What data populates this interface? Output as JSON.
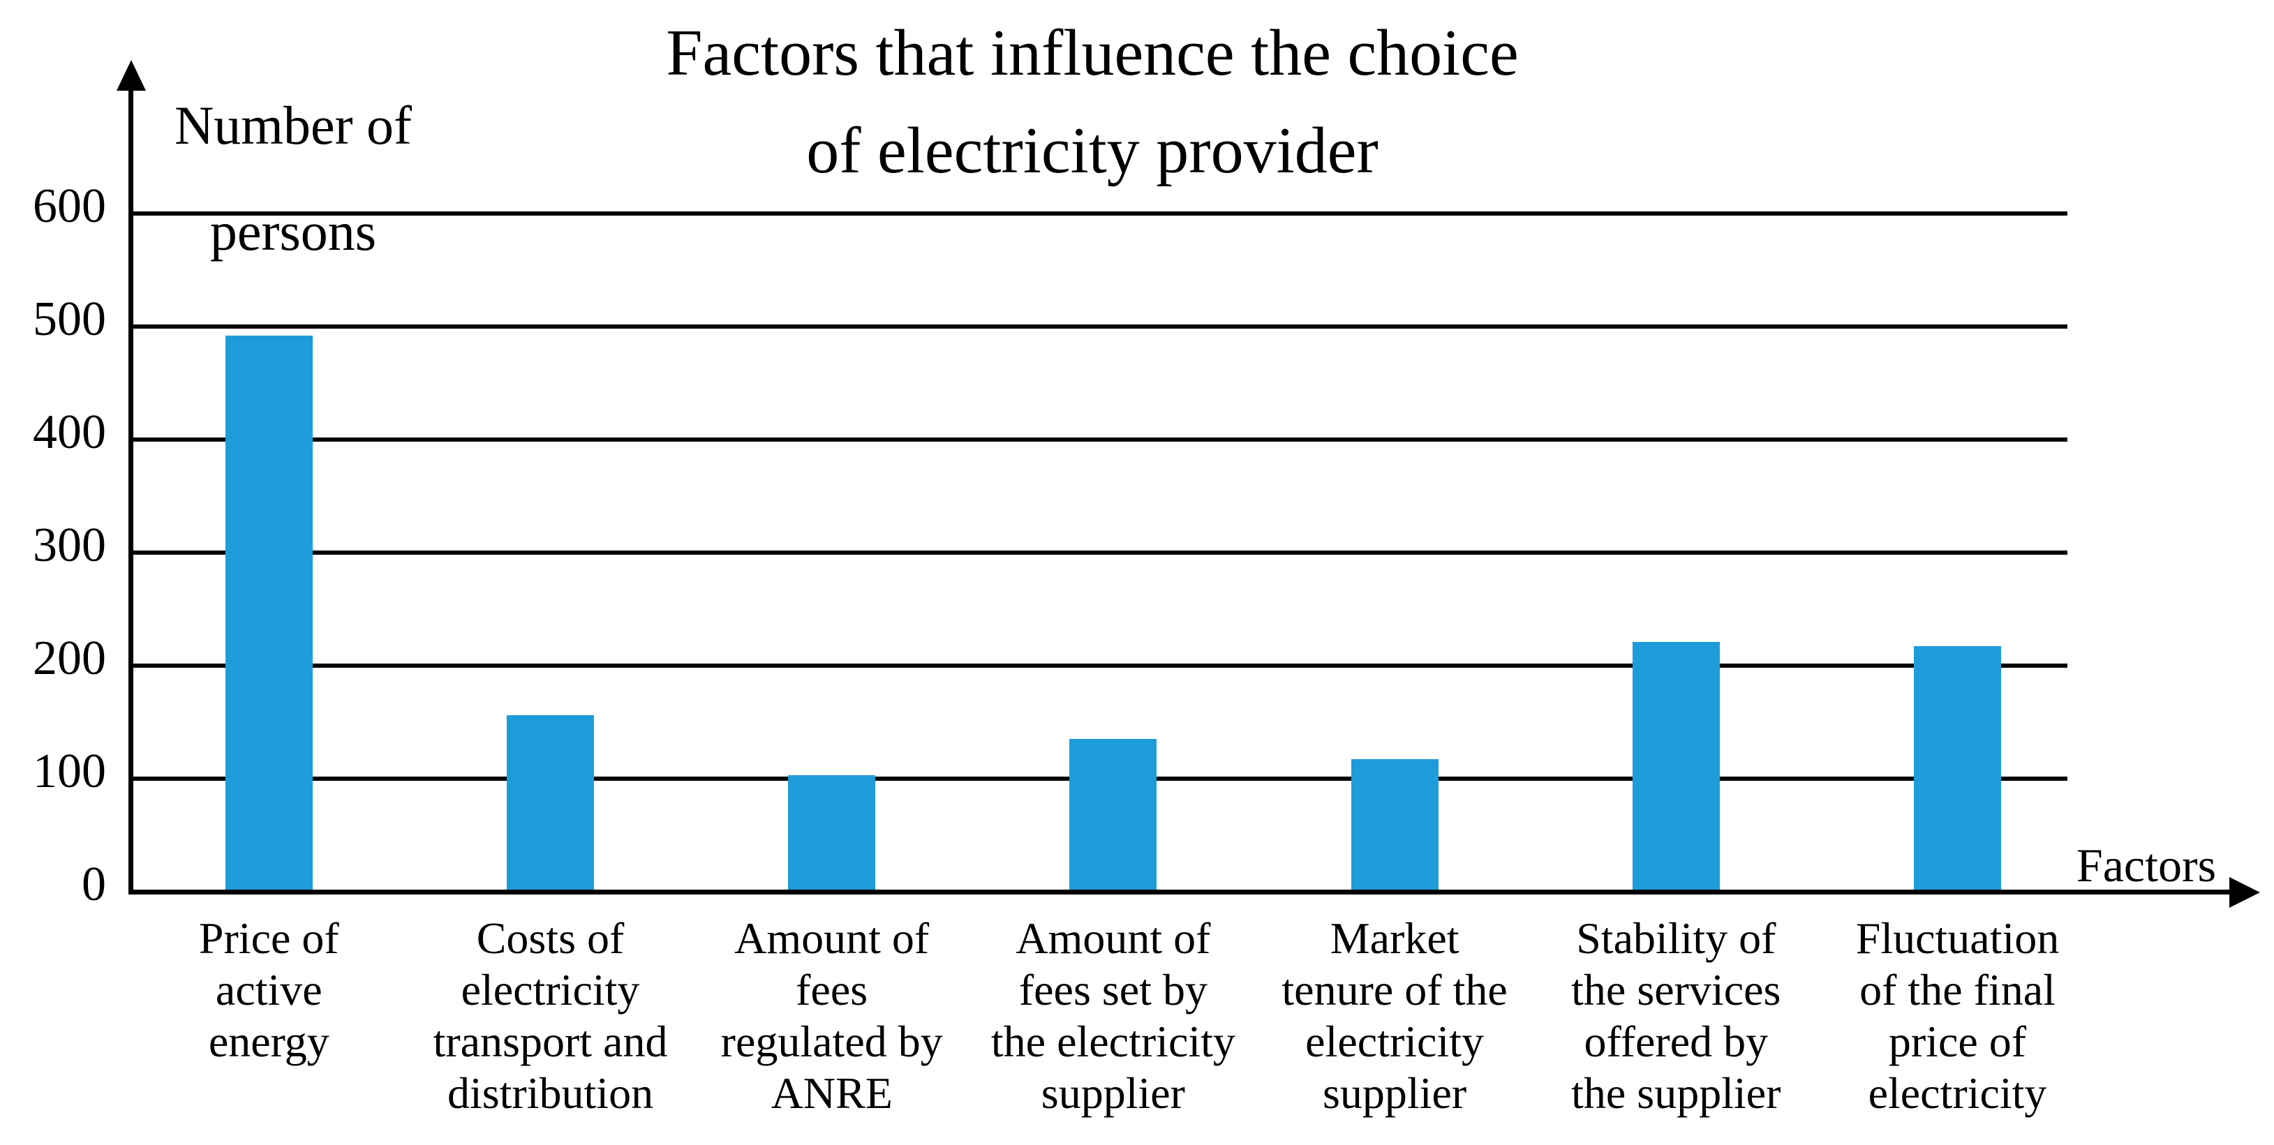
{
  "title": "Factors that influence the choice\nof electricity provider",
  "y_axis_label": "Number of\npersons",
  "x_axis_label": "Factors",
  "colors": {
    "bar": "#1e9cd9",
    "axis": "#000000",
    "background": "#ffffff"
  },
  "chart_data": {
    "type": "bar",
    "title": "Factors that influence the choice of electricity provider",
    "xlabel": "Factors",
    "ylabel": "Number of persons",
    "ylim": [
      0,
      650
    ],
    "yticks": [
      0,
      100,
      200,
      300,
      400,
      500,
      600
    ],
    "grid": "horizontal-only",
    "legend": "none",
    "bar_color": "#1e9cd9",
    "categories": [
      "Price of\nactive\nenergy",
      "Costs of\nelectricity\ntransport and\ndistribution",
      "Amount of\nfees\nregulated by\nANRE",
      "Amount of\nfees set by\nthe electricity\nsupplier",
      "Market\ntenure of the\nelectricity\nsupplier",
      "Stability of\nthe services\noffered by\nthe supplier",
      "Fluctuation\nof the final\nprice of\nelectricity"
    ],
    "values": [
      492,
      156,
      103,
      135,
      117,
      221,
      217
    ]
  }
}
